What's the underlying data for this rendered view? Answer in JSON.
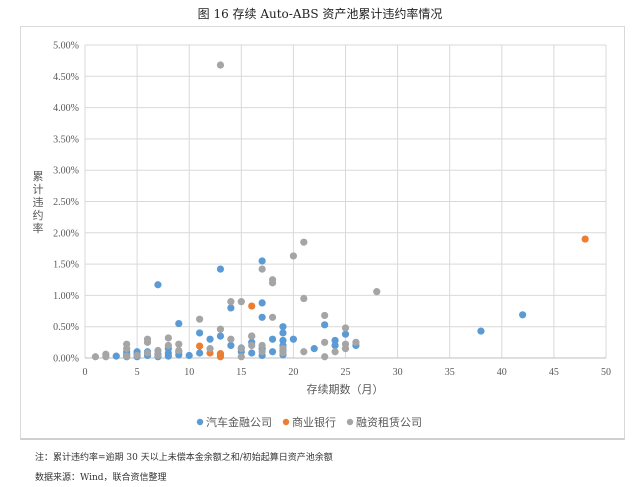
{
  "figure": {
    "title": "图 16 存续 Auto-ABS 资产池累计违约率情况",
    "note": "注：累计违约率=逾期 30 天以上未偿本金余额之和/初始起算日资产池余额",
    "source": "数据来源：Wind，联合资信整理"
  },
  "colors": {
    "auto_finance": "#5B9BD5",
    "commercial_bank": "#ED7D31",
    "leasing": "#A5A5A5",
    "grid": "#d9d9d9"
  },
  "chart_data": {
    "type": "scatter",
    "title": "存续 Auto-ABS 资产池累计违约率情况",
    "xlabel": "存续期数（月）",
    "ylabel": "累计违约率",
    "xlim": [
      0,
      50
    ],
    "ylim": [
      0,
      0.05
    ],
    "x_ticks": [
      "0",
      "5",
      "10",
      "15",
      "20",
      "25",
      "30",
      "35",
      "40",
      "45",
      "50"
    ],
    "y_ticks": [
      "0.00%",
      "0.50%",
      "1.00%",
      "1.50%",
      "2.00%",
      "2.50%",
      "3.00%",
      "3.50%",
      "4.00%",
      "4.50%",
      "5.00%"
    ],
    "grid": true,
    "legend_position": "bottom",
    "series": [
      {
        "name": "汽车金融公司",
        "color": "#5B9BD5",
        "points": [
          [
            3,
            0.0003
          ],
          [
            4,
            0.0002
          ],
          [
            4,
            0.0006
          ],
          [
            4,
            0.001
          ],
          [
            5,
            0.0002
          ],
          [
            5,
            0.0006
          ],
          [
            5,
            0.001
          ],
          [
            6,
            0.0004
          ],
          [
            6,
            0.001
          ],
          [
            7,
            0.0002
          ],
          [
            7,
            0.0006
          ],
          [
            7,
            0.0117
          ],
          [
            8,
            0.0003
          ],
          [
            8,
            0.0008
          ],
          [
            8,
            0.0015
          ],
          [
            9,
            0.0005
          ],
          [
            9,
            0.001
          ],
          [
            9,
            0.0055
          ],
          [
            10,
            0.0004
          ],
          [
            11,
            0.0008
          ],
          [
            11,
            0.004
          ],
          [
            12,
            0.003
          ],
          [
            13,
            0.0006
          ],
          [
            13,
            0.0035
          ],
          [
            13,
            0.0142
          ],
          [
            14,
            0.002
          ],
          [
            14,
            0.008
          ],
          [
            15,
            0.001
          ],
          [
            15,
            0.0016
          ],
          [
            16,
            0.0008
          ],
          [
            16,
            0.0025
          ],
          [
            16,
            0.0035
          ],
          [
            17,
            0.0004
          ],
          [
            17,
            0.0015
          ],
          [
            17,
            0.0065
          ],
          [
            17,
            0.0088
          ],
          [
            17,
            0.0155
          ],
          [
            18,
            0.001
          ],
          [
            18,
            0.003
          ],
          [
            19,
            0.0005
          ],
          [
            19,
            0.0012
          ],
          [
            19,
            0.002
          ],
          [
            19,
            0.0028
          ],
          [
            19,
            0.004
          ],
          [
            19,
            0.005
          ],
          [
            20,
            0.003
          ],
          [
            22,
            0.0015
          ],
          [
            23,
            0.0053
          ],
          [
            24,
            0.002
          ],
          [
            24,
            0.0028
          ],
          [
            25,
            0.0038
          ],
          [
            26,
            0.002
          ],
          [
            38,
            0.0043
          ],
          [
            42,
            0.0069
          ]
        ]
      },
      {
        "name": "商业银行",
        "color": "#ED7D31",
        "points": [
          [
            11,
            0.0019
          ],
          [
            12,
            0.0008
          ],
          [
            13,
            0.0002
          ],
          [
            13,
            0.0007
          ],
          [
            16,
            0.0083
          ],
          [
            48,
            0.019
          ]
        ]
      },
      {
        "name": "融资租赁公司",
        "color": "#A5A5A5",
        "points": [
          [
            1,
            0.0002
          ],
          [
            2,
            0.0002
          ],
          [
            2,
            0.0006
          ],
          [
            4,
            0.0003
          ],
          [
            4,
            0.0015
          ],
          [
            4,
            0.0022
          ],
          [
            5,
            0.0004
          ],
          [
            6,
            0.0008
          ],
          [
            6,
            0.0025
          ],
          [
            6,
            0.003
          ],
          [
            7,
            0.0004
          ],
          [
            7,
            0.0012
          ],
          [
            8,
            0.002
          ],
          [
            8,
            0.0032
          ],
          [
            9,
            0.0012
          ],
          [
            9,
            0.0022
          ],
          [
            11,
            0.0062
          ],
          [
            12,
            0.0015
          ],
          [
            13,
            0.0046
          ],
          [
            13,
            0.0468
          ],
          [
            14,
            0.009
          ],
          [
            14,
            0.003
          ],
          [
            15,
            0.0002
          ],
          [
            15,
            0.009
          ],
          [
            15,
            0.0015
          ],
          [
            16,
            0.002
          ],
          [
            16,
            0.0035
          ],
          [
            17,
            0.001
          ],
          [
            17,
            0.002
          ],
          [
            17,
            0.0142
          ],
          [
            18,
            0.0125
          ],
          [
            18,
            0.012
          ],
          [
            18,
            0.0065
          ],
          [
            19,
            0.0008
          ],
          [
            19,
            0.0015
          ],
          [
            20,
            0.0163
          ],
          [
            21,
            0.0095
          ],
          [
            21,
            0.0185
          ],
          [
            21,
            0.001
          ],
          [
            23,
            0.0068
          ],
          [
            23,
            0.0002
          ],
          [
            23,
            0.0025
          ],
          [
            24,
            0.001
          ],
          [
            25,
            0.0015
          ],
          [
            25,
            0.0022
          ],
          [
            25,
            0.0048
          ],
          [
            26,
            0.0025
          ],
          [
            28,
            0.0106
          ]
        ]
      }
    ]
  }
}
